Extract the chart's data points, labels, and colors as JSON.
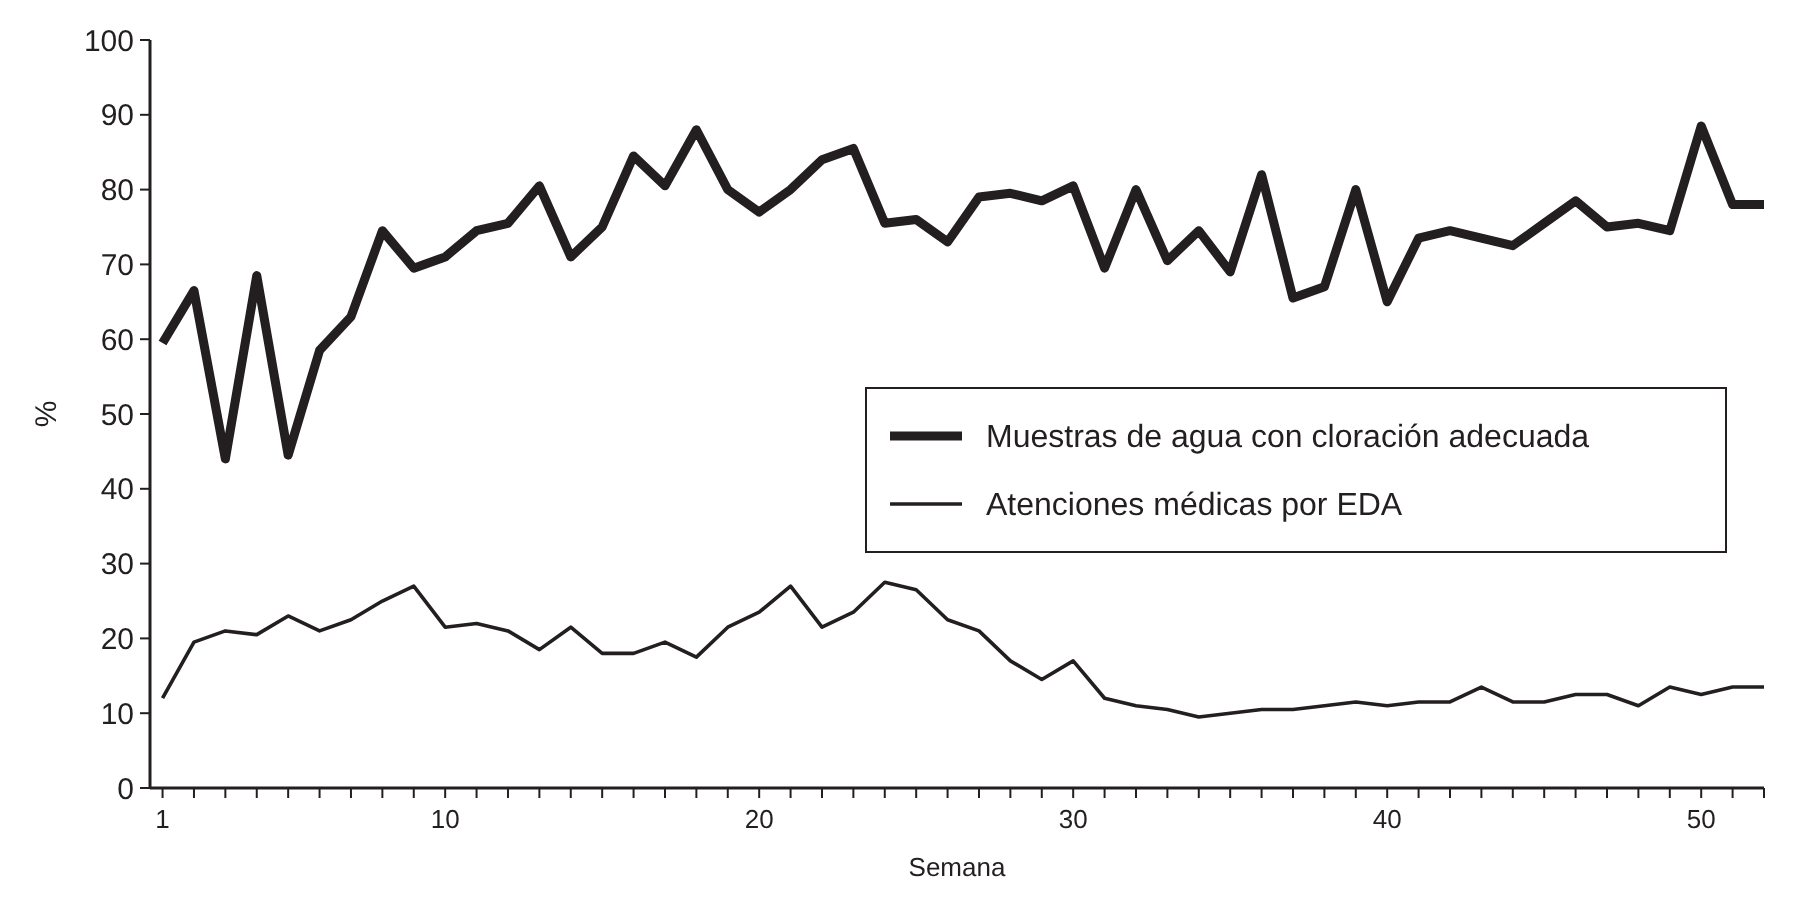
{
  "chart_data": {
    "type": "line",
    "xlabel": "Semana",
    "ylabel": "%",
    "x": [
      1,
      2,
      3,
      4,
      5,
      6,
      7,
      8,
      9,
      10,
      11,
      12,
      13,
      14,
      15,
      16,
      17,
      18,
      19,
      20,
      21,
      22,
      23,
      24,
      25,
      26,
      27,
      28,
      29,
      30,
      31,
      32,
      33,
      34,
      35,
      36,
      37,
      38,
      39,
      40,
      41,
      42,
      43,
      44,
      45,
      46,
      47,
      48,
      49,
      50,
      51,
      52
    ],
    "series": [
      {
        "name": "Muestras de agua con cloración adecuada",
        "color": "#231f20",
        "values": [
          59.5,
          66.5,
          44,
          68.5,
          44.5,
          58.5,
          63,
          74.5,
          69.5,
          71,
          74.5,
          75.5,
          80.5,
          71,
          75,
          84.5,
          80.5,
          88,
          80,
          77,
          80,
          84,
          85.5,
          75.5,
          76,
          73,
          79,
          79.5,
          78.5,
          80.5,
          69.5,
          80,
          70.5,
          74.5,
          69,
          82,
          65.5,
          67,
          80,
          65,
          73.5,
          74.5,
          73.5,
          72.5,
          75.5,
          78.5,
          75,
          75.5,
          74.5,
          88.5,
          78,
          78
        ]
      },
      {
        "name": "Atenciones médicas por EDA",
        "color": "#231f20",
        "values": [
          12,
          19.5,
          21,
          20.5,
          23,
          21,
          22.5,
          25,
          27,
          21.5,
          22,
          21,
          18.5,
          21.5,
          18,
          18,
          19.5,
          17.5,
          21.5,
          23.5,
          27,
          21.5,
          23.5,
          27.5,
          26.5,
          22.5,
          21,
          17,
          14.5,
          17,
          12,
          11,
          10.5,
          9.5,
          10,
          10.5,
          10.5,
          11,
          11.5,
          11,
          11.5,
          11.5,
          13.5,
          11.5,
          11.5,
          12.5,
          12.5,
          11,
          13.5,
          12.5,
          13.5,
          13.5
        ]
      }
    ],
    "xlim": [
      0.6,
      52
    ],
    "xticks": [
      1,
      {
        "value": 2,
        "label": null
      },
      {
        "value": 3,
        "label": null
      },
      {
        "value": 4,
        "label": null
      },
      {
        "value": 5,
        "label": null
      },
      {
        "value": 6,
        "label": null
      },
      {
        "value": 7,
        "label": null
      },
      {
        "value": 8,
        "label": null
      },
      {
        "value": 9,
        "label": null
      },
      10,
      {
        "value": 11,
        "label": null
      },
      {
        "value": 12,
        "label": null
      },
      {
        "value": 13,
        "label": null
      },
      {
        "value": 14,
        "label": null
      },
      {
        "value": 15,
        "label": null
      },
      {
        "value": 16,
        "label": null
      },
      {
        "value": 17,
        "label": null
      },
      {
        "value": 18,
        "label": null
      },
      {
        "value": 19,
        "label": null
      },
      20,
      {
        "value": 21,
        "label": null
      },
      {
        "value": 22,
        "label": null
      },
      {
        "value": 23,
        "label": null
      },
      {
        "value": 24,
        "label": null
      },
      {
        "value": 25,
        "label": null
      },
      {
        "value": 26,
        "label": null
      },
      {
        "value": 27,
        "label": null
      },
      {
        "value": 28,
        "label": null
      },
      {
        "value": 29,
        "label": null
      },
      30,
      {
        "value": 31,
        "label": null
      },
      {
        "value": 32,
        "label": null
      },
      {
        "value": 33,
        "label": null
      },
      {
        "value": 34,
        "label": null
      },
      {
        "value": 35,
        "label": null
      },
      {
        "value": 36,
        "label": null
      },
      {
        "value": 37,
        "label": null
      },
      {
        "value": 38,
        "label": null
      },
      {
        "value": 39,
        "label": null
      },
      40,
      {
        "value": 41,
        "label": null
      },
      {
        "value": 42,
        "label": null
      },
      {
        "value": 43,
        "label": null
      },
      {
        "value": 44,
        "label": null
      },
      {
        "value": 45,
        "label": null
      },
      {
        "value": 46,
        "label": null
      },
      {
        "value": 47,
        "label": null
      },
      {
        "value": 48,
        "label": null
      },
      {
        "value": 49,
        "label": null
      },
      50,
      {
        "value": 51,
        "label": null
      },
      {
        "value": 52,
        "label": null
      }
    ],
    "ylim": [
      0,
      100
    ],
    "yticks": [
      0,
      10,
      20,
      30,
      40,
      50,
      60,
      70,
      80,
      90,
      100
    ],
    "grid": false,
    "legend": "right",
    "line_style": "solid"
  }
}
